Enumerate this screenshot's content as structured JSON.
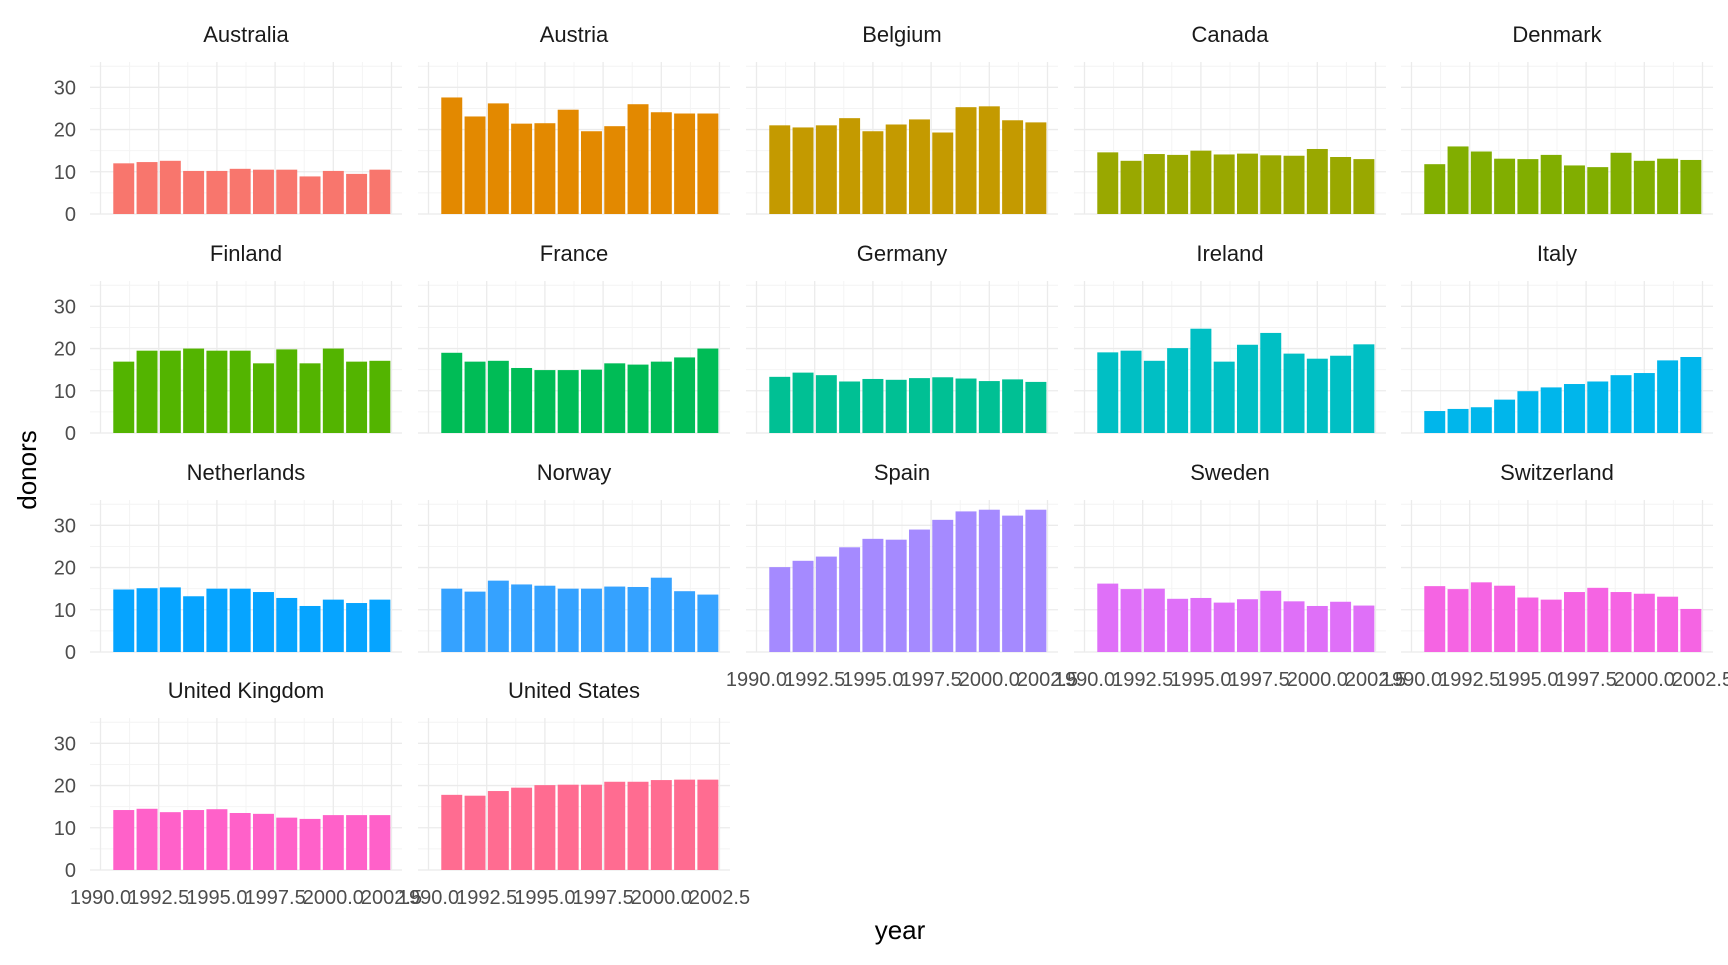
{
  "chart_data": {
    "type": "bar",
    "layout": "facet_wrap",
    "xlabel": "year",
    "ylabel": "donors",
    "ylim": [
      0,
      36
    ],
    "xlim": [
      1990.0,
      2002.5
    ],
    "y_ticks": [
      0,
      10,
      20,
      30
    ],
    "x_ticks": [
      1990.0,
      1992.5,
      1995.0,
      1997.5,
      2000.0,
      2002.5
    ],
    "x_tick_labels": [
      "1990.0",
      "1992.5",
      "1995.0",
      "1997.5",
      "2000.0",
      "2002.5"
    ],
    "y_tick_labels": [
      "0",
      "10",
      "20",
      "30"
    ],
    "grid": true,
    "years": [
      1991,
      1992,
      1993,
      1994,
      1995,
      1996,
      1997,
      1998,
      1999,
      2000,
      2001,
      2002
    ],
    "panels": [
      {
        "name": "Australia",
        "color": "#F8766D",
        "values": [
          12.0,
          12.3,
          12.6,
          10.2,
          10.2,
          10.7,
          10.5,
          10.5,
          8.9,
          10.2,
          9.5,
          10.5
        ]
      },
      {
        "name": "Austria",
        "color": "#E38900",
        "values": [
          27.6,
          23.1,
          26.2,
          21.4,
          21.5,
          24.7,
          19.6,
          20.8,
          26.0,
          24.1,
          23.8,
          23.8
        ]
      },
      {
        "name": "Belgium",
        "color": "#C49A00",
        "values": [
          21.0,
          20.5,
          21.0,
          22.7,
          19.6,
          21.2,
          22.4,
          19.3,
          25.3,
          25.5,
          22.2,
          21.7
        ]
      },
      {
        "name": "Canada",
        "color": "#99A800",
        "values": [
          14.6,
          12.6,
          14.2,
          14.0,
          15.0,
          14.1,
          14.3,
          13.9,
          13.8,
          15.4,
          13.5,
          13.0
        ]
      },
      {
        "name": "Denmark",
        "color": "#81AE00",
        "values": [
          11.8,
          16.0,
          14.8,
          13.1,
          13.0,
          14.0,
          11.5,
          11.1,
          14.5,
          12.6,
          13.1,
          12.8
        ]
      },
      {
        "name": "Finland",
        "color": "#53B400",
        "values": [
          16.9,
          19.5,
          19.5,
          20.0,
          19.5,
          19.5,
          16.5,
          19.8,
          16.5,
          20.0,
          16.9,
          17.1
        ]
      },
      {
        "name": "France",
        "color": "#00BC56",
        "values": [
          19.0,
          16.9,
          17.1,
          15.4,
          14.9,
          14.9,
          15.0,
          16.5,
          16.2,
          16.9,
          17.9,
          20.0
        ]
      },
      {
        "name": "Germany",
        "color": "#00C094",
        "values": [
          13.3,
          14.3,
          13.7,
          12.2,
          12.8,
          12.6,
          13.0,
          13.2,
          12.9,
          12.3,
          12.7,
          12.1
        ]
      },
      {
        "name": "Ireland",
        "color": "#00BFC4",
        "values": [
          19.1,
          19.5,
          17.1,
          20.1,
          24.7,
          16.9,
          20.9,
          23.7,
          18.8,
          17.6,
          18.3,
          21.0
        ]
      },
      {
        "name": "Italy",
        "color": "#00B6EB",
        "values": [
          5.2,
          5.7,
          6.1,
          7.9,
          9.9,
          10.8,
          11.6,
          12.2,
          13.7,
          14.2,
          17.2,
          18.0
        ]
      },
      {
        "name": "Netherlands",
        "color": "#06A4FF",
        "values": [
          14.8,
          15.1,
          15.3,
          13.2,
          15.0,
          15.0,
          14.2,
          12.8,
          10.9,
          12.4,
          11.6,
          12.4
        ]
      },
      {
        "name": "Norway",
        "color": "#35A2FF",
        "values": [
          15.0,
          14.3,
          16.9,
          16.0,
          15.7,
          15.0,
          15.0,
          15.5,
          15.4,
          17.6,
          14.4,
          13.6
        ]
      },
      {
        "name": "Spain",
        "color": "#A58AFF",
        "values": [
          20.1,
          21.6,
          22.6,
          24.8,
          26.8,
          26.6,
          29.0,
          31.3,
          33.3,
          33.7,
          32.3,
          33.7
        ]
      },
      {
        "name": "Sweden",
        "color": "#DF70F8",
        "values": [
          16.2,
          14.9,
          15.0,
          12.6,
          12.8,
          11.7,
          12.5,
          14.5,
          12.0,
          10.9,
          11.9,
          11.0
        ]
      },
      {
        "name": "Switzerland",
        "color": "#F564E3",
        "values": [
          15.6,
          14.9,
          16.5,
          15.7,
          12.9,
          12.4,
          14.2,
          15.2,
          14.2,
          13.8,
          13.1,
          10.2
        ]
      },
      {
        "name": "United Kingdom",
        "color": "#FF61C9",
        "values": [
          14.2,
          14.5,
          13.7,
          14.2,
          14.4,
          13.5,
          13.3,
          12.4,
          12.1,
          13.0,
          13.0,
          13.0
        ]
      },
      {
        "name": "United States",
        "color": "#FF6C91",
        "values": [
          17.8,
          17.6,
          18.7,
          19.5,
          20.1,
          20.2,
          20.2,
          20.9,
          20.9,
          21.3,
          21.4,
          21.4
        ]
      }
    ]
  }
}
